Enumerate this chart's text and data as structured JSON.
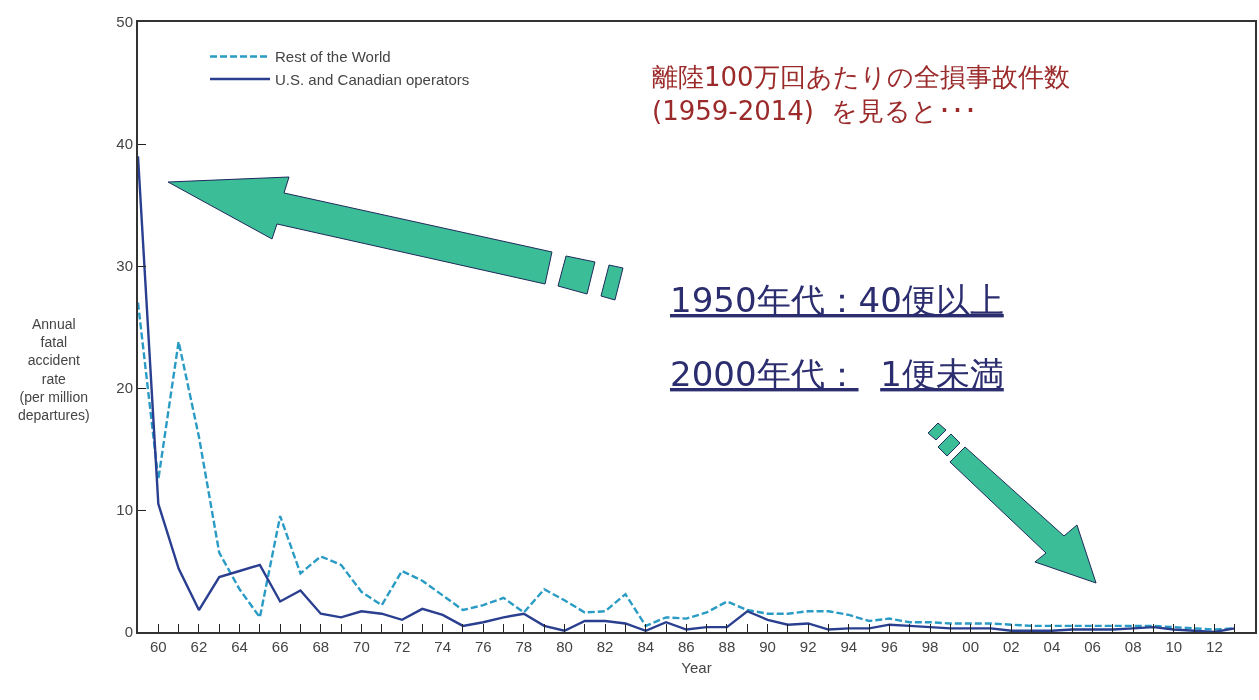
{
  "chart_data": {
    "type": "line",
    "xlabel": "Year",
    "ylabel": "Annual\nfatal\naccident\nrate\n(per million\ndepartures)",
    "x": [
      1959,
      1960,
      1961,
      1962,
      1963,
      1964,
      1965,
      1966,
      1967,
      1968,
      1969,
      1970,
      1971,
      1972,
      1973,
      1974,
      1975,
      1976,
      1977,
      1978,
      1979,
      1980,
      1981,
      1982,
      1983,
      1984,
      1985,
      1986,
      1987,
      1988,
      1989,
      1990,
      1991,
      1992,
      1993,
      1994,
      1995,
      1996,
      1997,
      1998,
      1999,
      2000,
      2001,
      2002,
      2003,
      2004,
      2005,
      2006,
      2007,
      2008,
      2009,
      2010,
      2011,
      2012,
      2013
    ],
    "series": [
      {
        "name": "Rest of the World",
        "color": "#2a9bc4",
        "line_style": "dashed",
        "values": [
          27,
          12.5,
          23.8,
          16,
          6.5,
          3.5,
          1.2,
          9.5,
          4.8,
          6.2,
          5.5,
          3.3,
          2.2,
          5.0,
          4.2,
          3.0,
          1.8,
          2.2,
          2.8,
          1.6,
          3.5,
          2.6,
          1.6,
          1.7,
          3.1,
          0.5,
          1.2,
          1.1,
          1.6,
          2.5,
          1.8,
          1.5,
          1.5,
          1.7,
          1.7,
          1.4,
          0.9,
          1.1,
          0.8,
          0.8,
          0.7,
          0.7,
          0.7,
          0.6,
          0.5,
          0.5,
          0.5,
          0.5,
          0.5,
          0.5,
          0.5,
          0.4,
          0.3,
          0.2,
          0.3
        ]
      },
      {
        "name": "U.S. and Canadian operators",
        "color": "#2a3f8f",
        "line_style": "solid",
        "values": [
          39,
          10.5,
          5.2,
          1.8,
          4.5,
          5.0,
          5.5,
          2.5,
          3.4,
          1.5,
          1.2,
          1.7,
          1.5,
          1.0,
          1.9,
          1.4,
          0.5,
          0.8,
          1.2,
          1.5,
          0.5,
          0.1,
          0.9,
          0.9,
          0.7,
          0.1,
          0.8,
          0.2,
          0.4,
          0.4,
          1.7,
          1.0,
          0.6,
          0.7,
          0.2,
          0.3,
          0.3,
          0.6,
          0.5,
          0.4,
          0.3,
          0.3,
          0.3,
          0.1,
          0.1,
          0.1,
          0.2,
          0.2,
          0.2,
          0.3,
          0.4,
          0.2,
          0.1,
          0.0,
          0.3
        ]
      }
    ],
    "xlim": [
      1959,
      2014
    ],
    "xticks": [
      {
        "value": 1960,
        "label": "60"
      },
      {
        "value": 1961,
        "label": null
      },
      {
        "value": 1962,
        "label": "62"
      },
      {
        "value": 1963,
        "label": null
      },
      {
        "value": 1964,
        "label": "64"
      },
      {
        "value": 1965,
        "label": null
      },
      {
        "value": 1966,
        "label": "66"
      },
      {
        "value": 1967,
        "label": null
      },
      {
        "value": 1968,
        "label": "68"
      },
      {
        "value": 1969,
        "label": null
      },
      {
        "value": 1970,
        "label": "70"
      },
      {
        "value": 1971,
        "label": null
      },
      {
        "value": 1972,
        "label": "72"
      },
      {
        "value": 1973,
        "label": null
      },
      {
        "value": 1974,
        "label": "74"
      },
      {
        "value": 1975,
        "label": null
      },
      {
        "value": 1976,
        "label": "76"
      },
      {
        "value": 1977,
        "label": null
      },
      {
        "value": 1978,
        "label": "78"
      },
      {
        "value": 1979,
        "label": null
      },
      {
        "value": 1980,
        "label": "80"
      },
      {
        "value": 1981,
        "label": null
      },
      {
        "value": 1982,
        "label": "82"
      },
      {
        "value": 1983,
        "label": null
      },
      {
        "value": 1984,
        "label": "84"
      },
      {
        "value": 1985,
        "label": null
      },
      {
        "value": 1986,
        "label": "86"
      },
      {
        "value": 1987,
        "label": null
      },
      {
        "value": 1988,
        "label": "88"
      },
      {
        "value": 1989,
        "label": null
      },
      {
        "value": 1990,
        "label": "90"
      },
      {
        "value": 1991,
        "label": null
      },
      {
        "value": 1992,
        "label": "92"
      },
      {
        "value": 1993,
        "label": null
      },
      {
        "value": 1994,
        "label": "94"
      },
      {
        "value": 1995,
        "label": null
      },
      {
        "value": 1996,
        "label": "96"
      },
      {
        "value": 1997,
        "label": null
      },
      {
        "value": 1998,
        "label": "98"
      },
      {
        "value": 1999,
        "label": null
      },
      {
        "value": 2000,
        "label": "00"
      },
      {
        "value": 2001,
        "label": null
      },
      {
        "value": 2002,
        "label": "02"
      },
      {
        "value": 2003,
        "label": null
      },
      {
        "value": 2004,
        "label": "04"
      },
      {
        "value": 2005,
        "label": null
      },
      {
        "value": 2006,
        "label": "06"
      },
      {
        "value": 2007,
        "label": null
      },
      {
        "value": 2008,
        "label": "08"
      },
      {
        "value": 2009,
        "label": null
      },
      {
        "value": 2010,
        "label": "10"
      },
      {
        "value": 2011,
        "label": null
      },
      {
        "value": 2012,
        "label": "12"
      },
      {
        "value": 2013,
        "label": null
      }
    ],
    "ylim": [
      0,
      50
    ],
    "yticks": [
      0,
      10,
      20,
      30,
      40,
      50
    ],
    "grid": false,
    "legend": "top left",
    "annotations": [
      "離陸100万回あたりの全損事故件数\n(1959-2014)  を見ると･･･",
      "1950年代：40便以上",
      "2000年代：  1便未満"
    ]
  }
}
